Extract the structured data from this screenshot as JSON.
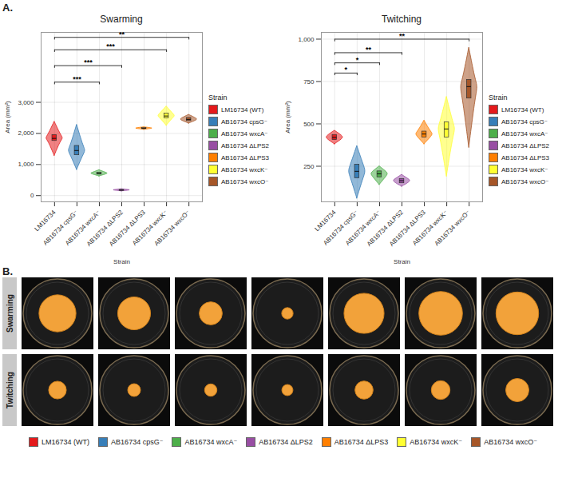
{
  "panel_labels": [
    "A.",
    "B."
  ],
  "chart_data": [
    {
      "type": "violin",
      "title": "Swarming",
      "x_label": "Strain",
      "y_label": "Area (mm²)",
      "legend_title": "Strain",
      "legend": "right",
      "grid": true,
      "categories": [
        "LM16734",
        "AB16734 cpsG⁻",
        "AB16734 wxcA⁻",
        "AB16734 ΔLPS2",
        "AB16734 ΔLPS3",
        "AB16734 wxcK⁻",
        "AB16734 wxcO⁻"
      ],
      "ylim": [
        -200,
        5250
      ],
      "yticks": [
        0,
        1000,
        2000,
        3000
      ],
      "series": [
        {
          "name": "LM16734 (WT)",
          "color": "#E41A1C",
          "min": 1280,
          "q1": 1760,
          "median": 1840,
          "q3": 1950,
          "max": 2380
        },
        {
          "name": "AB16734 cpsG⁻",
          "color": "#377EB8",
          "min": 830,
          "q1": 1300,
          "median": 1450,
          "q3": 1600,
          "max": 2280
        },
        {
          "name": "AB16734 wxcA⁻",
          "color": "#4DAF4A",
          "min": 620,
          "q1": 680,
          "median": 710,
          "q3": 740,
          "max": 820
        },
        {
          "name": "AB16734 ΔLPS2",
          "color": "#984EA3",
          "min": 140,
          "q1": 160,
          "median": 175,
          "q3": 185,
          "max": 210
        },
        {
          "name": "AB16734 ΔLPS3",
          "color": "#FF7F00",
          "min": 2120,
          "q1": 2145,
          "median": 2160,
          "q3": 2175,
          "max": 2200
        },
        {
          "name": "AB16734 wxcK⁻",
          "color": "#FFFF33",
          "min": 2250,
          "q1": 2490,
          "median": 2560,
          "q3": 2640,
          "max": 2870
        },
        {
          "name": "AB16734 wxcO⁻",
          "color": "#A65628",
          "min": 2320,
          "q1": 2400,
          "median": 2450,
          "q3": 2500,
          "max": 2600
        }
      ],
      "comparisons": [
        {
          "from": "LM16734",
          "to": "AB16734 wxcA⁻",
          "y": 3650,
          "label": "***"
        },
        {
          "from": "LM16734",
          "to": "AB16734 ΔLPS2",
          "y": 4180,
          "label": "***"
        },
        {
          "from": "LM16734",
          "to": "AB16734 wxcK⁻",
          "y": 4690,
          "label": "***"
        },
        {
          "from": "LM16734",
          "to": "AB16734 wxcO⁻",
          "y": 5090,
          "label": "**"
        }
      ]
    },
    {
      "type": "violin",
      "title": "Twitching",
      "x_label": "Strain",
      "y_label": "Area (mm²)",
      "legend_title": "Strain",
      "legend": "right",
      "grid": true,
      "categories": [
        "LM16734",
        "AB16734 cpsG⁻",
        "AB16734 wxcA⁻",
        "AB16734 ΔLPS2",
        "AB16734 ΔLPS3",
        "AB16734 wxcK⁻",
        "AB16734 wxcO⁻"
      ],
      "ylim": [
        40,
        1040
      ],
      "yticks": [
        250,
        500,
        750,
        1000
      ],
      "series": [
        {
          "name": "LM16734 (WT)",
          "color": "#E41A1C",
          "min": 380,
          "q1": 405,
          "median": 420,
          "q3": 435,
          "max": 460
        },
        {
          "name": "AB16734 cpsG⁻",
          "color": "#377EB8",
          "min": 60,
          "q1": 180,
          "median": 220,
          "q3": 260,
          "max": 370
        },
        {
          "name": "AB16734 wxcA⁻",
          "color": "#4DAF4A",
          "min": 140,
          "q1": 185,
          "median": 205,
          "q3": 220,
          "max": 250
        },
        {
          "name": "AB16734 ΔLPS2",
          "color": "#984EA3",
          "min": 130,
          "q1": 150,
          "median": 165,
          "q3": 175,
          "max": 200
        },
        {
          "name": "AB16734 ΔLPS3",
          "color": "#FF7F00",
          "min": 380,
          "q1": 420,
          "median": 440,
          "q3": 455,
          "max": 520
        },
        {
          "name": "AB16734 wxcK⁻",
          "color": "#FFFF33",
          "min": 190,
          "q1": 420,
          "median": 470,
          "q3": 510,
          "max": 660
        },
        {
          "name": "AB16734 wxcO⁻",
          "color": "#A65628",
          "min": 360,
          "q1": 650,
          "median": 720,
          "q3": 760,
          "max": 950
        }
      ],
      "comparisons": [
        {
          "from": "LM16734",
          "to": "AB16734 cpsG⁻",
          "y": 800,
          "label": "*"
        },
        {
          "from": "LM16734",
          "to": "AB16734 wxcA⁻",
          "y": 860,
          "label": "*"
        },
        {
          "from": "LM16734",
          "to": "AB16734 ΔLPS2",
          "y": 920,
          "label": "**"
        },
        {
          "from": "LM16734",
          "to": "AB16734 wxcO⁻",
          "y": 1000,
          "label": "**"
        }
      ]
    }
  ],
  "panel_b": {
    "row_labels": [
      "Swarming",
      "Twitching"
    ]
  }
}
